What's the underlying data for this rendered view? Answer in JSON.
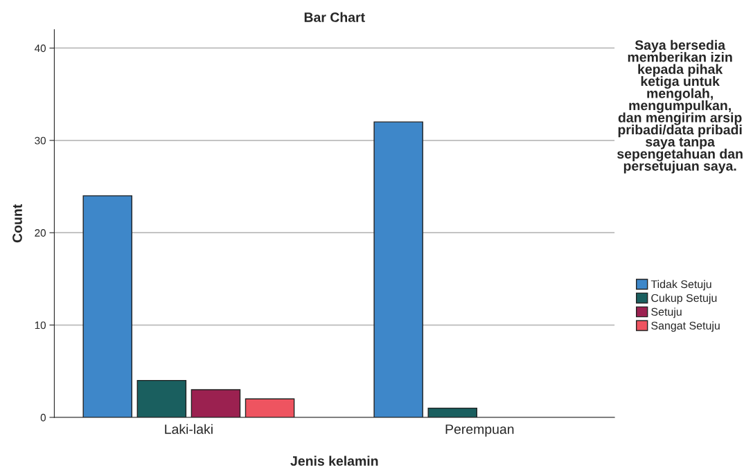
{
  "chart_data": {
    "type": "bar",
    "title": "Bar Chart",
    "xlabel": "Jenis kelamin",
    "ylabel": "Count",
    "legend_title": "Saya bersedia memberikan izin kepada pihak ketiga untuk mengolah, mengumpulkan, dan mengirim arsip pribadi/data pribadi saya tanpa sepengetahuan dan persetujuan saya.",
    "categories": [
      "Laki-laki",
      "Perempuan"
    ],
    "series": [
      {
        "name": "Tidak Setuju",
        "color": "#3e87c9",
        "values": [
          24,
          32
        ]
      },
      {
        "name": "Cukup Setuju",
        "color": "#1a5f5f",
        "values": [
          4,
          1
        ]
      },
      {
        "name": "Setuju",
        "color": "#9b2150",
        "values": [
          3,
          null
        ]
      },
      {
        "name": "Sangat Setuju",
        "color": "#ee5460",
        "values": [
          2,
          null
        ]
      }
    ],
    "ylim": [
      0,
      42
    ],
    "yticks": [
      0,
      10,
      20,
      30,
      40
    ],
    "grid": "y",
    "legend": "right"
  }
}
